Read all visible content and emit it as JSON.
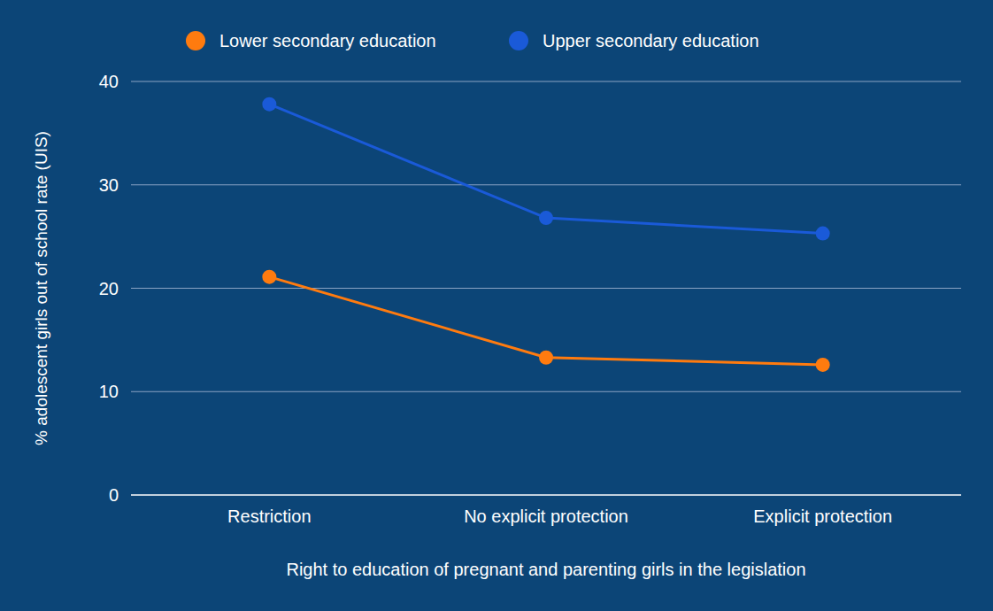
{
  "chart_data": {
    "type": "line",
    "x_label": "Right to education of pregnant and parenting girls in the legislation",
    "y_label": "% adolescent girls out of school rate (UIS)",
    "categories": [
      "Restriction",
      "No explicit protection",
      "Explicit protection"
    ],
    "series": [
      {
        "name": "Lower secondary education",
        "color": "#ff7b0f",
        "values": [
          21.1,
          13.3,
          12.6
        ],
        "marker": "circle"
      },
      {
        "name": "Upper secondary education",
        "color": "#1a5ad8",
        "values": [
          37.8,
          26.8,
          25.3
        ],
        "marker": "circle"
      }
    ],
    "ylim": [
      0,
      40
    ],
    "yticks": [
      0,
      10,
      20,
      30,
      40
    ],
    "grid": true,
    "legend": "top"
  }
}
